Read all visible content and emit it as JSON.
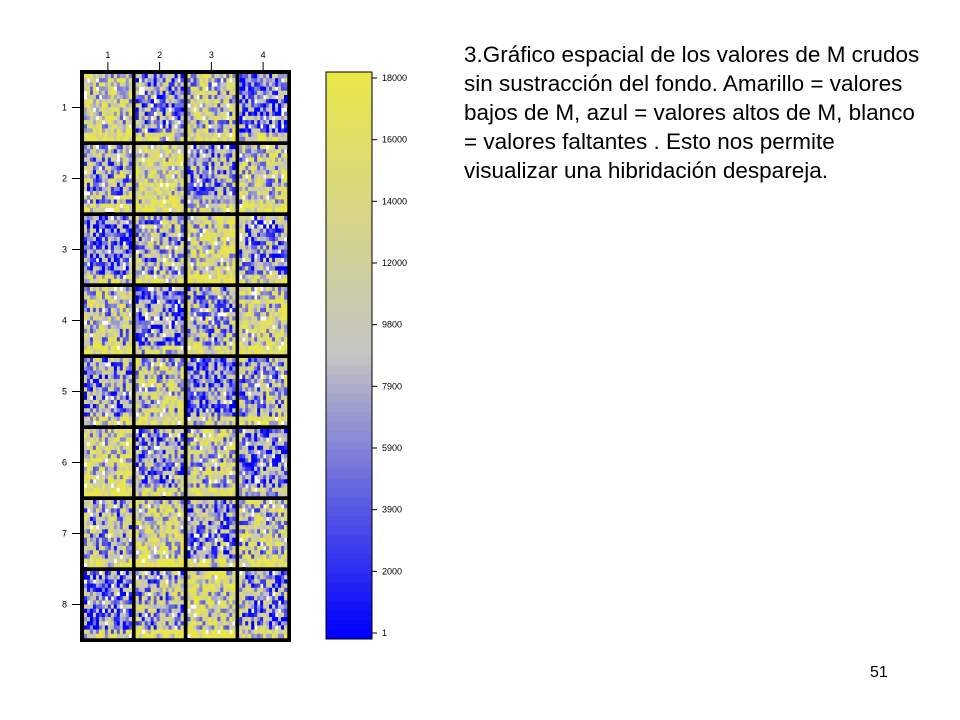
{
  "slide": {
    "caption": "3.Gráfico espacial de los valores de M crudos sin sustracción del fondo. Amarillo = valores bajos de M, azul = valores altos de M, blanco = valores faltantes . Esto nos permite visualizar una hibridación despareja.",
    "slide_number": "51"
  },
  "colors": {
    "low": "#e9e64a",
    "mid": "#c4c4c4",
    "high": "#0000ff",
    "missing": "#ffffff",
    "grid_border": "#000000"
  },
  "chart_data": {
    "type": "heatmap",
    "title": "",
    "xlabel": "",
    "ylabel": "",
    "column_labels": [
      "1",
      "2",
      "3",
      "4"
    ],
    "row_labels": [
      "1",
      "2",
      "3",
      "4",
      "5",
      "6",
      "7",
      "8"
    ],
    "grid": {
      "block_rows": 8,
      "block_cols": 4
    },
    "colorbar": {
      "tick_labels": [
        "18000",
        "16000",
        "14000",
        "12000",
        "9800",
        "7900",
        "5900",
        "3900",
        "2000",
        "1"
      ],
      "ticks": [
        18000,
        16000,
        14000,
        12000,
        9800,
        7900,
        5900,
        3900,
        2000,
        1
      ],
      "range": [
        1,
        18000
      ],
      "colors_top_to_bottom": [
        "#e9e64a",
        "#c4c4c4",
        "#0000ff"
      ]
    }
  }
}
